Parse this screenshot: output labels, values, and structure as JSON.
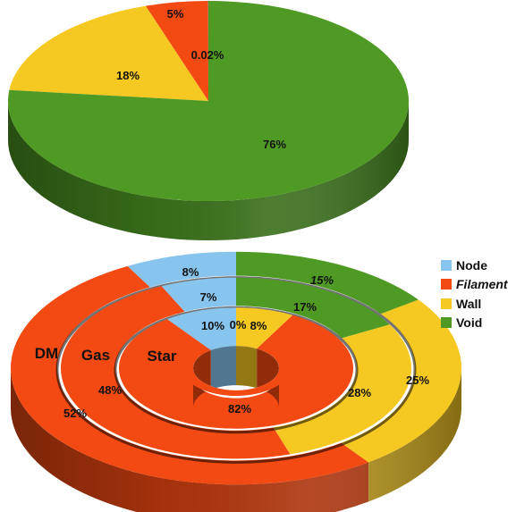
{
  "colors": {
    "Node": "#87c4ee",
    "Filament": "#f24a12",
    "Wall": "#f6c822",
    "Void": "#4f9a24"
  },
  "legend": [
    {
      "name": "Node",
      "icon": "node-swatch"
    },
    {
      "name": "Filament",
      "icon": "filament-swatch"
    },
    {
      "name": "Wall",
      "icon": "wall-swatch"
    },
    {
      "name": "Void",
      "icon": "void-swatch"
    }
  ],
  "chart_data": [
    {
      "type": "pie",
      "categories": [
        "Node",
        "Filament",
        "Wall",
        "Void"
      ],
      "values": [
        0.02,
        5,
        18,
        76
      ],
      "labels": [
        "0.02%",
        "5%",
        "18%",
        "76%"
      ]
    },
    {
      "type": "pie",
      "style": "nested-donut",
      "categories": [
        "Node",
        "Filament",
        "Wall",
        "Void"
      ],
      "rings": [
        {
          "name": "DM",
          "values": [
            8,
            52,
            25,
            15
          ],
          "labels": [
            "8%",
            "52%",
            "25%",
            "15%"
          ]
        },
        {
          "name": "Gas",
          "values": [
            7,
            48,
            28,
            17
          ],
          "labels": [
            "7%",
            "48%",
            "28%",
            "17%"
          ]
        },
        {
          "name": "Star",
          "values": [
            10,
            82,
            8,
            0
          ],
          "labels": [
            "10%",
            "82%",
            "8%",
            "0%"
          ]
        }
      ]
    }
  ]
}
